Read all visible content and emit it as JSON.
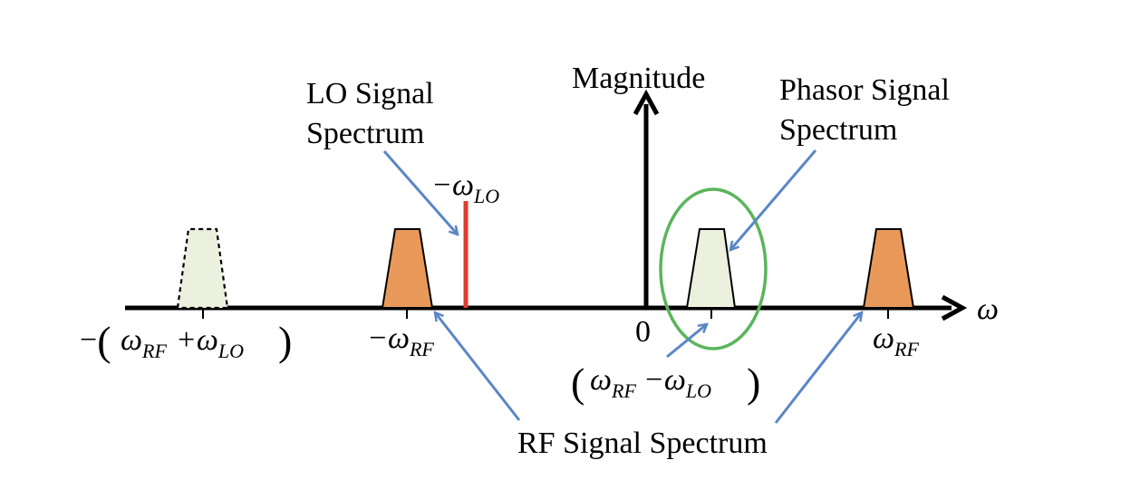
{
  "axis": {
    "y_label": "Magnitude",
    "x_symbol": "ω",
    "origin_label": "0"
  },
  "annotations": {
    "lo_line1": "LO Signal",
    "lo_line2": "Spectrum",
    "phasor_line1": "Phasor Signal",
    "phasor_line2": "Spectrum",
    "rf": "RF Signal Spectrum"
  },
  "ticks": {
    "sum": {
      "minus": "−",
      "w1": "ω",
      "s1": "RF",
      "plus": "+ω",
      "s2": "LO"
    },
    "neg_rf": {
      "minus": "−ω",
      "s": "RF"
    },
    "diff": {
      "w1": "ω",
      "s1": "RF",
      "minus": "−ω",
      "s2": "LO"
    },
    "pos_rf": {
      "w": "ω",
      "s": "RF"
    },
    "neg_lo": {
      "minus": "−ω",
      "s": "LO"
    }
  },
  "colors": {
    "rf_fill": "#e8995a",
    "phasor_fill": "#ebf1de",
    "lo_line": "#e03c2e",
    "arrow": "#5b86c5",
    "ellipse": "#5bb55b",
    "axis": "#000000"
  }
}
